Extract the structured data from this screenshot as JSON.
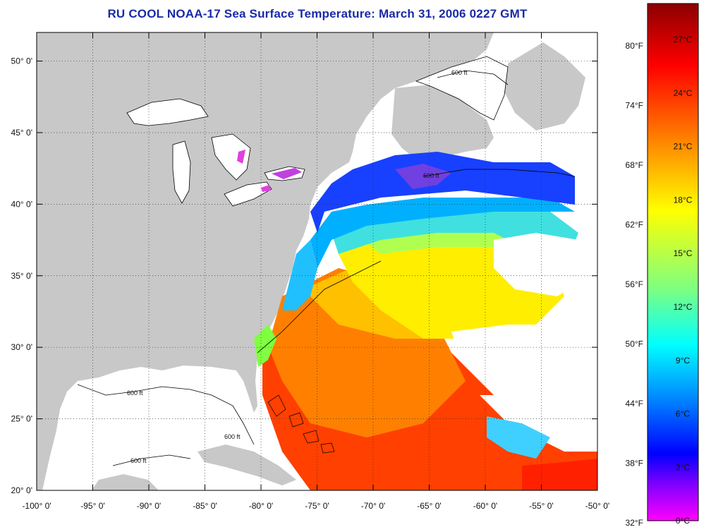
{
  "title": "RU COOL  NOAA-17  Sea Surface Temperature:  March 31, 2006 0227 GMT",
  "map": {
    "lon_range": [
      -100,
      -50
    ],
    "lat_range": [
      20,
      52
    ],
    "lon_ticks": [
      "-100° 0'",
      "-95° 0'",
      "-90° 0'",
      "-85° 0'",
      "-80° 0'",
      "-75° 0'",
      "-70° 0'",
      "-65° 0'",
      "-60° 0'",
      "-55° 0'",
      "-50° 0'"
    ],
    "lat_ticks": [
      "20° 0'",
      "25° 0'",
      "30° 0'",
      "35° 0'",
      "40° 0'",
      "45° 0'",
      "50° 0'"
    ],
    "gridlines": "dotted",
    "land_color": "#c8c8c8",
    "no_data_color": "#ffffff",
    "contour_label": "600 ft"
  },
  "colorbar": {
    "fahrenheit_labels": [
      "80°F",
      "74°F",
      "68°F",
      "62°F",
      "56°F",
      "50°F",
      "44°F",
      "38°F",
      "32°F"
    ],
    "celsius_labels": [
      "27°C",
      "24°C",
      "21°C",
      "18°C",
      "15°C",
      "12°C",
      "9°C",
      "6°C",
      "3°C",
      "0°C"
    ],
    "colors": [
      "#8b0000",
      "#ff0000",
      "#ff7f00",
      "#ffff00",
      "#7fff7f",
      "#00ffff",
      "#0080ff",
      "#0000ff",
      "#8000ff",
      "#ff00ff"
    ]
  }
}
